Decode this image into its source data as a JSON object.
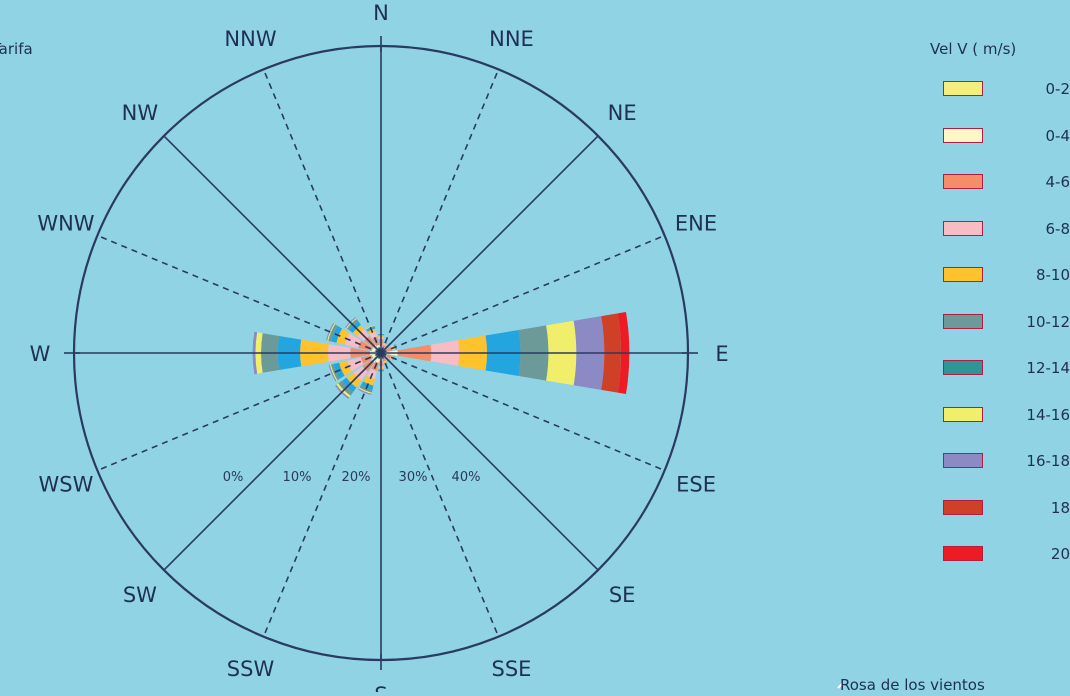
{
  "station": "Tarifa",
  "caption": "Rosa de los vientos",
  "chart_data": {
    "type": "windrose",
    "directions": [
      "N",
      "NNE",
      "NE",
      "ENE",
      "E",
      "ESE",
      "SE",
      "SSE",
      "S",
      "SSW",
      "SW",
      "WSW",
      "W",
      "WNW",
      "NW",
      "NNW"
    ],
    "radial_tick_labels": [
      "0%",
      "10%",
      "20%",
      "30%",
      "40%"
    ],
    "legend_title": "Vel V  ( m/s)",
    "speed_bins": [
      "0-2",
      "0-4",
      "4-6",
      "6-8",
      "8-10",
      "10-12",
      "12-14",
      "14-16",
      "16-18",
      "18",
      "20"
    ],
    "colors": [
      "#f3ee7d",
      "#fdf6c6",
      "#f58c6a",
      "#f7bcc4",
      "#fec22d",
      "#23a6df",
      "#6b9a98",
      "#f0ee6b",
      "#8b8ac4",
      "#cf4127",
      "#ed1c24"
    ],
    "legend_colors": [
      "#f3ee7d",
      "#fdf6c6",
      "#f58c6a",
      "#f7bcc4",
      "#fec22d",
      "#6b9a98",
      "#2f9596",
      "#f0ee6b",
      "#8b8ac4",
      "#cf4127",
      "#ed1c24"
    ],
    "sector_bins_percent": {
      "N": [
        1.0,
        0.3,
        1.2,
        0.4,
        0.3,
        0.2,
        0.1,
        0.1,
        0.0,
        0.0,
        0.0
      ],
      "NNE": [
        0.7,
        0.3,
        0.5,
        0.2,
        0.2,
        0.1,
        0.1,
        0.0,
        0.0,
        0.0,
        0.0
      ],
      "NE": [
        0.6,
        0.3,
        0.3,
        0.2,
        0.1,
        0.1,
        0.0,
        0.0,
        0.0,
        0.0,
        0.0
      ],
      "ENE": [
        0.8,
        0.3,
        1.0,
        0.3,
        0.3,
        0.2,
        0.1,
        0.0,
        0.0,
        0.0,
        0.0
      ],
      "E": [
        1.0,
        2.0,
        6.0,
        5.0,
        5.0,
        6.0,
        5.0,
        5.0,
        5.0,
        3.0,
        1.5
      ],
      "ESE": [
        0.7,
        0.5,
        0.7,
        0.3,
        0.2,
        0.1,
        0.0,
        0.0,
        0.0,
        0.0,
        0.0
      ],
      "SE": [
        0.6,
        0.3,
        0.6,
        0.2,
        0.1,
        0.1,
        0.0,
        0.0,
        0.0,
        0.0,
        0.0
      ],
      "SSE": [
        0.7,
        0.3,
        0.6,
        0.2,
        0.2,
        0.1,
        0.0,
        0.0,
        0.0,
        0.0,
        0.0
      ],
      "S": [
        1.0,
        0.4,
        1.0,
        0.3,
        0.3,
        0.2,
        0.1,
        0.0,
        0.0,
        0.0,
        0.0
      ],
      "SSW": [
        1.2,
        0.6,
        1.5,
        1.5,
        1.2,
        0.8,
        0.5,
        0.2,
        0.2,
        0.0,
        0.0
      ],
      "SW": [
        1.5,
        0.6,
        2.0,
        2.0,
        1.5,
        1.0,
        0.8,
        0.4,
        0.3,
        0.0,
        0.0
      ],
      "WSW": [
        1.2,
        0.5,
        2.0,
        2.5,
        1.5,
        1.0,
        0.5,
        0.2,
        0.2,
        0.0,
        0.0
      ],
      "W": [
        1.0,
        1.0,
        3.5,
        4.0,
        5.0,
        4.0,
        3.0,
        1.0,
        0.5,
        0.0,
        0.0
      ],
      "WNW": [
        1.2,
        0.5,
        2.5,
        2.5,
        1.5,
        1.0,
        0.5,
        0.2,
        0.2,
        0.0,
        0.0
      ],
      "NW": [
        1.2,
        0.5,
        2.0,
        1.5,
        1.0,
        0.8,
        0.5,
        0.2,
        0.2,
        0.0,
        0.0
      ],
      "NNW": [
        1.0,
        0.5,
        1.5,
        1.0,
        0.5,
        0.3,
        0.2,
        0.1,
        0.0,
        0.0,
        0.0
      ]
    },
    "radial_max_percent": 55
  }
}
